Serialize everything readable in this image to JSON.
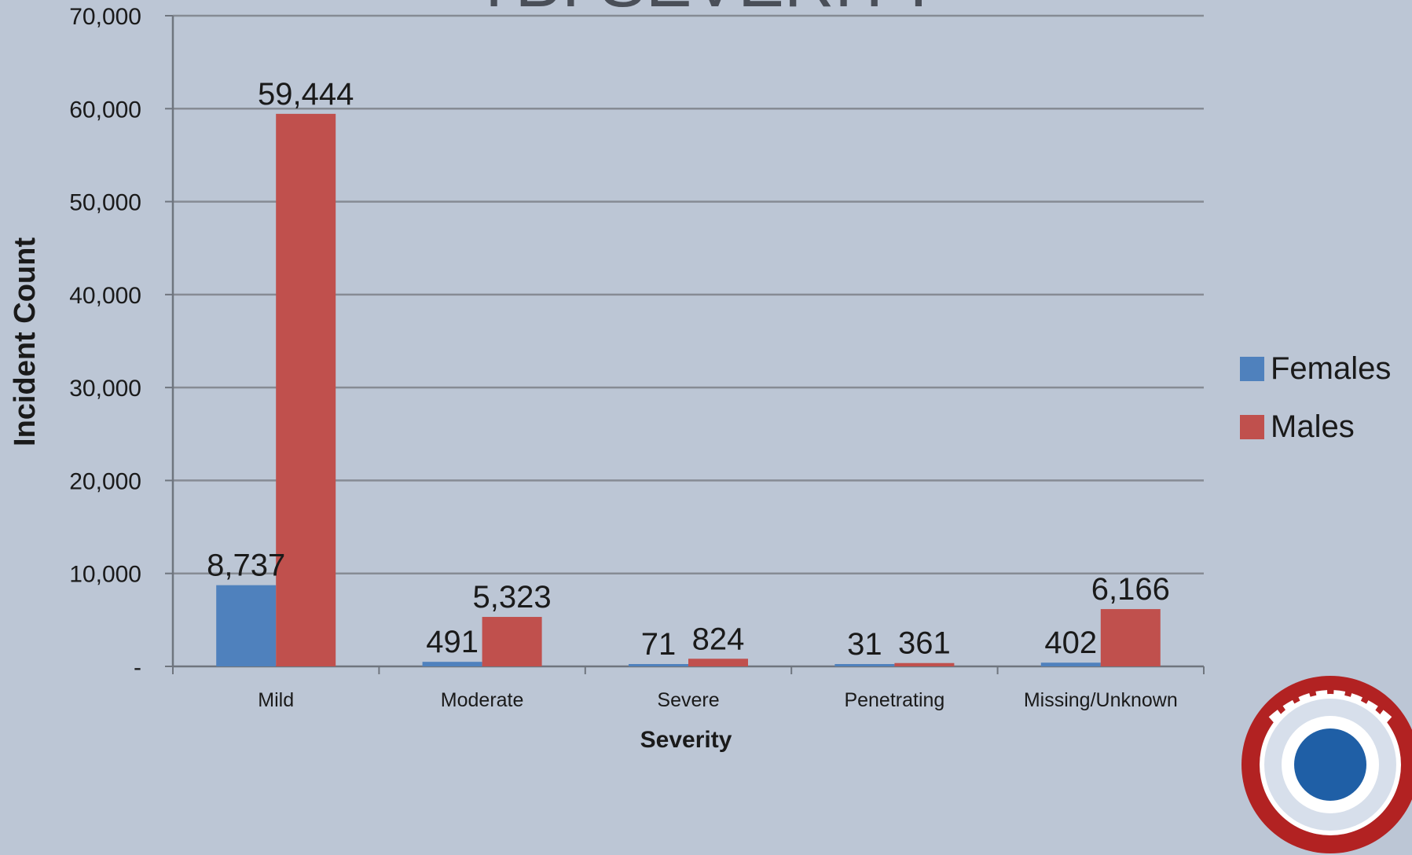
{
  "chart_data": {
    "type": "bar",
    "title": "TBI SEVERITY",
    "xlabel": "Severity",
    "ylabel": "Incident Count",
    "categories": [
      "Mild",
      "Moderate",
      "Severe",
      "Penetrating",
      "Missing/Unknown"
    ],
    "series": [
      {
        "name": "Females",
        "color": "#4f81bd",
        "values": [
          8737,
          491,
          71,
          31,
          402
        ],
        "labels": [
          "8,737",
          "491",
          "71",
          "31",
          "402"
        ]
      },
      {
        "name": "Males",
        "color": "#c0504d",
        "values": [
          59444,
          5323,
          824,
          361,
          6166
        ],
        "labels": [
          "59,444",
          "5,323",
          "824",
          "361",
          "6,166"
        ]
      }
    ],
    "ylim": [
      0,
      70000
    ],
    "yticks": [
      0,
      10000,
      20000,
      30000,
      40000,
      50000,
      60000,
      70000
    ],
    "ytick_labels": [
      "-",
      "10,000",
      "20,000",
      "30,000",
      "40,000",
      "50,000",
      "60,000",
      "70,000"
    ],
    "grid": true,
    "legend_position": "right"
  },
  "colors": {
    "background": "#bcc6d5",
    "gridline": "#868b94",
    "females": "#4f81bd",
    "males": "#c0504d",
    "text": "#1a1a1a"
  }
}
